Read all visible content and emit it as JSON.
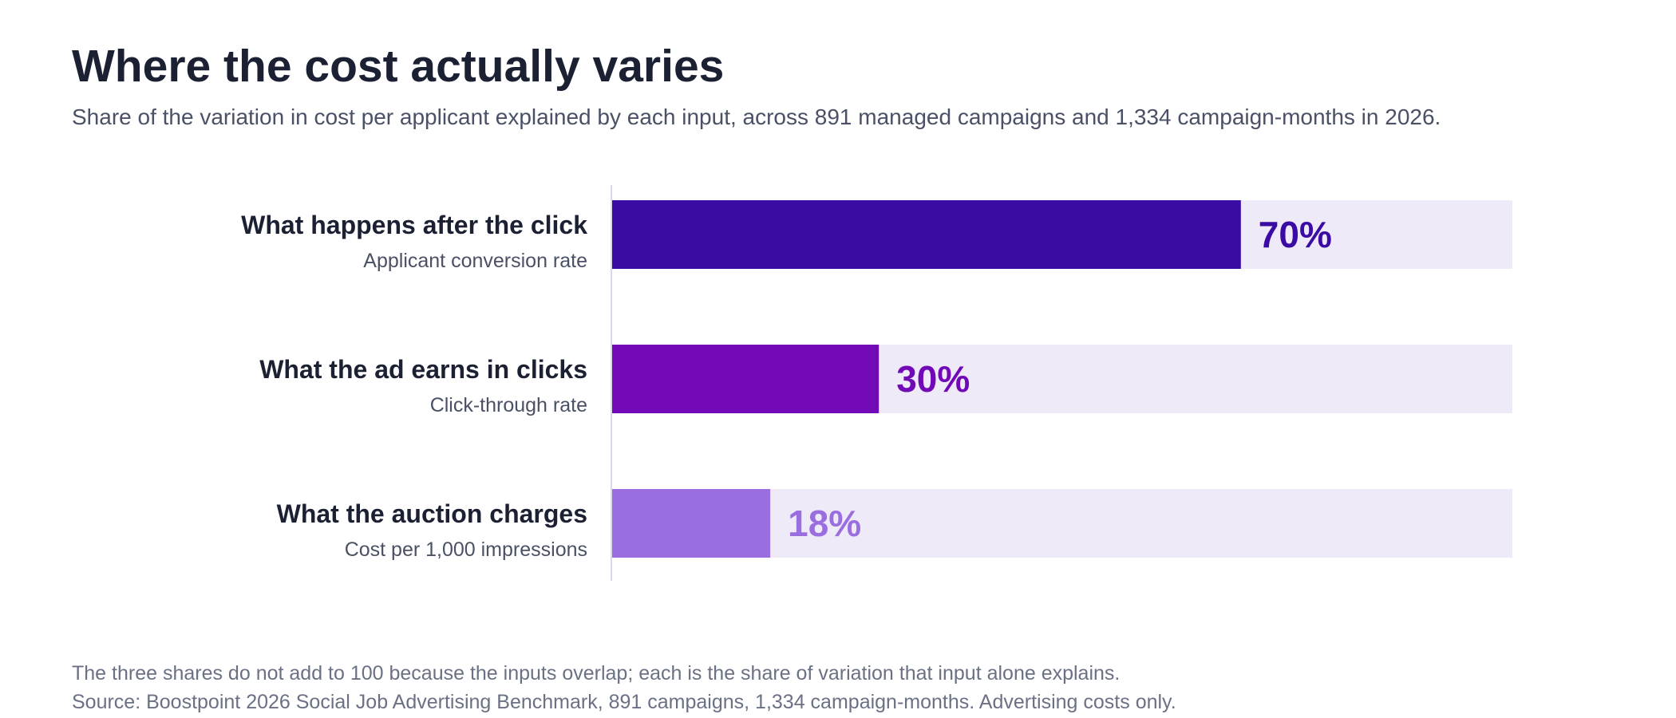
{
  "header": {
    "title": "Where the cost actually varies",
    "subtitle": "Share of the variation in cost per applicant explained by each input, across 891 managed campaigns and 1,334 campaign-months in 2026."
  },
  "chart_data": {
    "type": "bar",
    "orientation": "horizontal",
    "categories": [
      "What happens after the click",
      "What the ad earns in clicks",
      "What the auction charges"
    ],
    "sublabels": [
      "Applicant conversion rate",
      "Click-through rate",
      "Cost per 1,000 impressions"
    ],
    "values": [
      70,
      30,
      18
    ],
    "value_labels": [
      "70%",
      "30%",
      "18%"
    ],
    "unit": "%",
    "xlim": [
      0,
      100
    ],
    "colors": [
      "#3a0ca3",
      "#7209b7",
      "#9b6ee0"
    ],
    "track_color": "#eeeaf8",
    "grid": false
  },
  "footer": {
    "note": "The three shares do not add to 100 because the inputs overlap; each is the share of variation that input alone explains.",
    "source": "Source: Boostpoint 2026 Social Job Advertising Benchmark, 891 campaigns, 1,334 campaign-months. Advertising costs only."
  }
}
